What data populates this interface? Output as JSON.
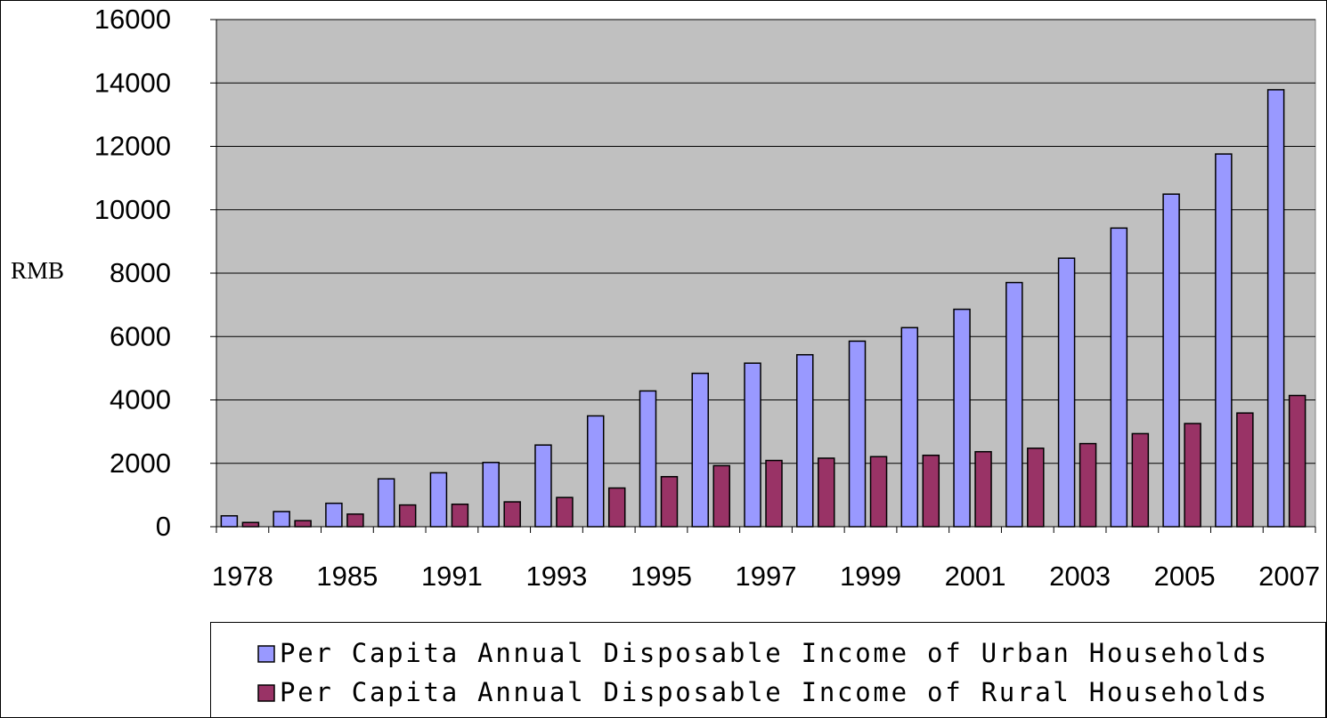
{
  "chart_data": {
    "type": "bar",
    "y_label": "RMB",
    "categories": [
      "1978",
      null,
      "1985",
      null,
      "1991",
      null,
      "1993",
      null,
      "1995",
      null,
      "1997",
      null,
      "1999",
      null,
      "2001",
      null,
      "2003",
      null,
      "2005",
      null,
      "2007"
    ],
    "series": [
      {
        "name": "Per Capita Annual Disposable Income of Urban Households",
        "color": "#9999ff",
        "values": [
          343,
          478,
          739,
          1510,
          1701,
          2027,
          2577,
          3496,
          4283,
          4839,
          5160,
          5425,
          5854,
          6280,
          6860,
          7703,
          8472,
          9422,
          10493,
          11759,
          13786
        ]
      },
      {
        "name": "Per Capita Annual Disposable Income of Rural Households",
        "color": "#993366",
        "values": [
          134,
          191,
          398,
          686,
          709,
          784,
          922,
          1221,
          1578,
          1926,
          2090,
          2162,
          2210,
          2253,
          2366,
          2476,
          2622,
          2936,
          3255,
          3587,
          4140
        ]
      }
    ],
    "ylim": [
      0,
      16000
    ],
    "yticks": [
      0,
      2000,
      4000,
      6000,
      8000,
      10000,
      12000,
      14000,
      16000
    ],
    "grid": true,
    "background": "#c0c0c0",
    "legend": "bottom"
  }
}
